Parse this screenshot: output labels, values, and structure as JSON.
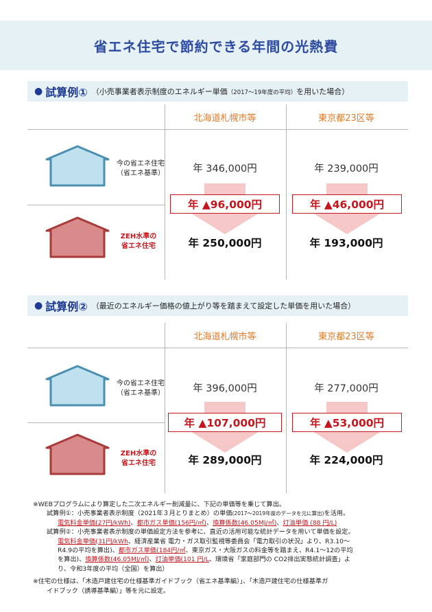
{
  "title": "省エネ住宅で節約できる年間の光熱費",
  "cases": [
    {
      "label": "試算例①",
      "desc_main": "（小売事業者表示制度のエネルギー単価",
      "desc_small": "（2017～19年度の平均）",
      "desc_end": "を用いた場合）",
      "columns": [
        "北海道札幌市等",
        "東京都23区等"
      ],
      "row_current_label": [
        "今の省エネ住宅",
        "（省エネ基準）"
      ],
      "row_zeh_label": [
        "ZEH水準の",
        "省エネ住宅"
      ],
      "current": [
        "年 346,000円",
        "年 239,000円"
      ],
      "saving": [
        "年 ▲96,000円",
        "年 ▲46,000円"
      ],
      "zeh": [
        "年 250,000円",
        "年 193,000円"
      ]
    },
    {
      "label": "試算例②",
      "desc_main": "（最近のエネルギー価格の値上がり等を踏まえて設定した単価を用いた場合）",
      "desc_small": "",
      "desc_end": "",
      "columns": [
        "北海道札幌市等",
        "東京都23区等"
      ],
      "row_current_label": [
        "今の省エネ住宅",
        "（省エネ基準）"
      ],
      "row_zeh_label": [
        "ZEH水準の",
        "省エネ住宅"
      ],
      "current": [
        "年 396,000円",
        "年 277,000円"
      ],
      "saving": [
        "年 ▲107,000円",
        "年 ▲53,000円"
      ],
      "zeh": [
        "年 289,000円",
        "年 224,000円"
      ]
    }
  ],
  "notes": {
    "n1": "※WEBプログラムにより算定した二次エネルギー削減量に、下記の単価等を乗じて算出。",
    "c1_a": "試算例①：小売事業者表示制度（2021年３月とりまとめ）の単価",
    "c1_small": "(2017～2019年度のデータを元に算出)",
    "c1_b": "を活用。",
    "c1_u1": "電気料金単価(27円/kWh)",
    "c1_u2": "都市ガス単価(156円/㎥)",
    "c1_u3": "換算係数(46.05MJ/㎥)",
    "c1_u4": "灯油単価 (88 円/L)",
    "c2_a": "試算例②：小売事業者表示制度の単価設定方法を参考に、直近の活用可能な統計データを用いて単価を設定。",
    "c2_u1": "電気料金単価(31円/kWh",
    "c2_b": "、経済産業省 電力・ガス取引監視等委員会「電力取引の状況」より、R3.10～",
    "c2_c": "R4.9の平均を算出)、",
    "c2_u2": "都市ガス単価(184円/㎥",
    "c2_d": "、東京ガス・大阪ガスの料金等を踏まえ、R4.1～12の平均",
    "c2_e": "を算出)、",
    "c2_u3": "換算係数(46.05MJ/㎥)",
    "c2_u4": "灯油単価(101 円/L",
    "c2_f": "、環境省「家庭部門の CO2排出実態統計調査」よ",
    "c2_g": "り、令和3年度の平均（全国）を算出）",
    "n2_a": "※住宅の仕様は、「木造戸建住宅の仕様基準ガイドブック（省エネ基準編）」、「木造戸建住宅の仕様基準ガ",
    "n2_b": "イドブック（誘導基準編）」等を元に設定。"
  },
  "colors": {
    "title_blue": "#2c4aa0",
    "accent_orange": "#e07b28",
    "accent_red": "#c4161c",
    "house_blue": "#4a8fb0",
    "house_red": "#a83a3a"
  }
}
